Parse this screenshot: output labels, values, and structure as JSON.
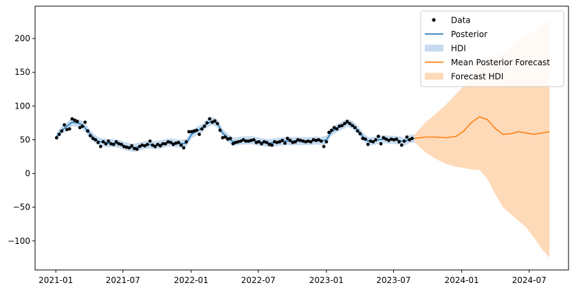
{
  "chart_data": {
    "type": "line",
    "title": "",
    "xlabel": "",
    "ylabel": "",
    "x_range": [
      "2020-11-06",
      "2024-10-15"
    ],
    "ylim": [
      -143,
      248
    ],
    "x_ticks": [
      "2021-01",
      "2021-07",
      "2022-01",
      "2022-07",
      "2023-01",
      "2023-07",
      "2024-01",
      "2024-07"
    ],
    "y_ticks": [
      -100,
      -50,
      0,
      50,
      100,
      150,
      200
    ],
    "grid": false,
    "legend_position": "upper right",
    "legend": [
      {
        "label": "Data",
        "kind": "marker",
        "color": "#000000"
      },
      {
        "label": "Posterior",
        "kind": "line",
        "color": "#1f77b4"
      },
      {
        "label": "HDI",
        "kind": "patch",
        "color": "#c6dbef"
      },
      {
        "label": "Mean Posterior Forecast",
        "kind": "line",
        "color": "#ff7f0e"
      },
      {
        "label": "Forecast HDI",
        "kind": "patch",
        "color": "#ffdab9"
      }
    ],
    "series": [
      {
        "name": "Data",
        "kind": "scatter",
        "color": "#000000",
        "points": [
          [
            "2021-01-03",
            53
          ],
          [
            "2021-01-10",
            58
          ],
          [
            "2021-01-17",
            63
          ],
          [
            "2021-01-24",
            72
          ],
          [
            "2021-01-31",
            65
          ],
          [
            "2021-02-07",
            66
          ],
          [
            "2021-02-14",
            81
          ],
          [
            "2021-02-21",
            79
          ],
          [
            "2021-02-28",
            77
          ],
          [
            "2021-03-07",
            68
          ],
          [
            "2021-03-14",
            70
          ],
          [
            "2021-03-21",
            76
          ],
          [
            "2021-03-28",
            63
          ],
          [
            "2021-04-04",
            56
          ],
          [
            "2021-04-11",
            52
          ],
          [
            "2021-04-18",
            50
          ],
          [
            "2021-04-25",
            46
          ],
          [
            "2021-05-02",
            40
          ],
          [
            "2021-05-09",
            47
          ],
          [
            "2021-05-16",
            44
          ],
          [
            "2021-05-23",
            48
          ],
          [
            "2021-05-30",
            44
          ],
          [
            "2021-06-06",
            43
          ],
          [
            "2021-06-13",
            47
          ],
          [
            "2021-06-20",
            44
          ],
          [
            "2021-06-27",
            43
          ],
          [
            "2021-07-04",
            40
          ],
          [
            "2021-07-11",
            39
          ],
          [
            "2021-07-18",
            38
          ],
          [
            "2021-07-25",
            41
          ],
          [
            "2021-08-01",
            37
          ],
          [
            "2021-08-08",
            36
          ],
          [
            "2021-08-15",
            40
          ],
          [
            "2021-08-22",
            42
          ],
          [
            "2021-08-29",
            41
          ],
          [
            "2021-09-05",
            43
          ],
          [
            "2021-09-12",
            48
          ],
          [
            "2021-09-19",
            42
          ],
          [
            "2021-09-26",
            40
          ],
          [
            "2021-10-03",
            43
          ],
          [
            "2021-10-10",
            41
          ],
          [
            "2021-10-17",
            44
          ],
          [
            "2021-10-24",
            44
          ],
          [
            "2021-10-31",
            47
          ],
          [
            "2021-11-07",
            46
          ],
          [
            "2021-11-14",
            43
          ],
          [
            "2021-11-21",
            45
          ],
          [
            "2021-11-28",
            46
          ],
          [
            "2021-12-05",
            42
          ],
          [
            "2021-12-12",
            38
          ],
          [
            "2021-12-19",
            47
          ],
          [
            "2021-12-26",
            62
          ],
          [
            "2022-01-02",
            62
          ],
          [
            "2022-01-09",
            63
          ],
          [
            "2022-01-16",
            64
          ],
          [
            "2022-01-23",
            58
          ],
          [
            "2022-01-30",
            66
          ],
          [
            "2022-02-06",
            70
          ],
          [
            "2022-02-13",
            75
          ],
          [
            "2022-02-20",
            81
          ],
          [
            "2022-02-27",
            76
          ],
          [
            "2022-03-06",
            78
          ],
          [
            "2022-03-13",
            74
          ],
          [
            "2022-03-20",
            64
          ],
          [
            "2022-03-27",
            53
          ],
          [
            "2022-04-03",
            54
          ],
          [
            "2022-04-10",
            51
          ],
          [
            "2022-04-17",
            52
          ],
          [
            "2022-04-24",
            44
          ],
          [
            "2022-05-01",
            46
          ],
          [
            "2022-05-08",
            47
          ],
          [
            "2022-05-15",
            48
          ],
          [
            "2022-05-22",
            50
          ],
          [
            "2022-05-29",
            48
          ],
          [
            "2022-06-05",
            48
          ],
          [
            "2022-06-12",
            49
          ],
          [
            "2022-06-19",
            50
          ],
          [
            "2022-06-26",
            46
          ],
          [
            "2022-07-03",
            47
          ],
          [
            "2022-07-10",
            44
          ],
          [
            "2022-07-17",
            47
          ],
          [
            "2022-07-24",
            46
          ],
          [
            "2022-07-31",
            43
          ],
          [
            "2022-08-07",
            42
          ],
          [
            "2022-08-14",
            47
          ],
          [
            "2022-08-21",
            46
          ],
          [
            "2022-08-28",
            47
          ],
          [
            "2022-09-04",
            49
          ],
          [
            "2022-09-11",
            45
          ],
          [
            "2022-09-18",
            52
          ],
          [
            "2022-09-25",
            49
          ],
          [
            "2022-10-02",
            46
          ],
          [
            "2022-10-09",
            47
          ],
          [
            "2022-10-16",
            50
          ],
          [
            "2022-10-23",
            49
          ],
          [
            "2022-10-30",
            48
          ],
          [
            "2022-11-06",
            47
          ],
          [
            "2022-11-13",
            48
          ],
          [
            "2022-11-20",
            47
          ],
          [
            "2022-11-27",
            50
          ],
          [
            "2022-12-04",
            49
          ],
          [
            "2022-12-11",
            50
          ],
          [
            "2022-12-18",
            48
          ],
          [
            "2022-12-25",
            40
          ],
          [
            "2023-01-01",
            47
          ],
          [
            "2023-01-08",
            61
          ],
          [
            "2023-01-15",
            64
          ],
          [
            "2023-01-22",
            68
          ],
          [
            "2023-01-29",
            66
          ],
          [
            "2023-02-05",
            70
          ],
          [
            "2023-02-12",
            71
          ],
          [
            "2023-02-19",
            74
          ],
          [
            "2023-02-26",
            77
          ],
          [
            "2023-03-05",
            74
          ],
          [
            "2023-03-12",
            71
          ],
          [
            "2023-03-19",
            68
          ],
          [
            "2023-03-26",
            63
          ],
          [
            "2023-04-02",
            59
          ],
          [
            "2023-04-09",
            52
          ],
          [
            "2023-04-16",
            51
          ],
          [
            "2023-04-23",
            43
          ],
          [
            "2023-04-30",
            48
          ],
          [
            "2023-05-07",
            47
          ],
          [
            "2023-05-14",
            50
          ],
          [
            "2023-05-21",
            55
          ],
          [
            "2023-05-28",
            44
          ],
          [
            "2023-06-04",
            53
          ],
          [
            "2023-06-11",
            51
          ],
          [
            "2023-06-18",
            49
          ],
          [
            "2023-06-25",
            51
          ],
          [
            "2023-07-02",
            50
          ],
          [
            "2023-07-09",
            51
          ],
          [
            "2023-07-16",
            47
          ],
          [
            "2023-07-23",
            42
          ],
          [
            "2023-07-30",
            48
          ],
          [
            "2023-08-06",
            54
          ],
          [
            "2023-08-13",
            50
          ],
          [
            "2023-08-20",
            52
          ]
        ]
      },
      {
        "name": "Posterior",
        "kind": "line",
        "color": "#1f77b4",
        "points": [
          [
            "2021-01-03",
            55
          ],
          [
            "2021-01-17",
            64
          ],
          [
            "2021-01-31",
            70
          ],
          [
            "2021-02-14",
            76
          ],
          [
            "2021-02-28",
            75
          ],
          [
            "2021-03-14",
            72
          ],
          [
            "2021-03-28",
            63
          ],
          [
            "2021-04-11",
            54
          ],
          [
            "2021-04-25",
            48
          ],
          [
            "2021-05-09",
            46
          ],
          [
            "2021-05-23",
            45
          ],
          [
            "2021-06-06",
            45
          ],
          [
            "2021-06-20",
            44
          ],
          [
            "2021-07-04",
            41
          ],
          [
            "2021-07-18",
            39
          ],
          [
            "2021-08-01",
            38
          ],
          [
            "2021-08-15",
            40
          ],
          [
            "2021-08-29",
            42
          ],
          [
            "2021-09-12",
            43
          ],
          [
            "2021-09-26",
            42
          ],
          [
            "2021-10-10",
            43
          ],
          [
            "2021-10-24",
            45
          ],
          [
            "2021-11-07",
            46
          ],
          [
            "2021-11-21",
            45
          ],
          [
            "2021-12-05",
            44
          ],
          [
            "2021-12-19",
            45
          ],
          [
            "2022-01-02",
            58
          ],
          [
            "2022-01-16",
            63
          ],
          [
            "2022-01-30",
            67
          ],
          [
            "2022-02-13",
            74
          ],
          [
            "2022-02-27",
            78
          ],
          [
            "2022-03-13",
            74
          ],
          [
            "2022-03-27",
            60
          ],
          [
            "2022-04-10",
            53
          ],
          [
            "2022-04-24",
            47
          ],
          [
            "2022-05-08",
            48
          ],
          [
            "2022-05-22",
            49
          ],
          [
            "2022-06-05",
            49
          ],
          [
            "2022-06-19",
            49
          ],
          [
            "2022-07-03",
            47
          ],
          [
            "2022-07-17",
            46
          ],
          [
            "2022-07-31",
            45
          ],
          [
            "2022-08-14",
            46
          ],
          [
            "2022-08-28",
            47
          ],
          [
            "2022-09-11",
            48
          ],
          [
            "2022-09-25",
            48
          ],
          [
            "2022-10-09",
            48
          ],
          [
            "2022-10-23",
            48
          ],
          [
            "2022-11-06",
            48
          ],
          [
            "2022-11-20",
            48
          ],
          [
            "2022-12-04",
            49
          ],
          [
            "2022-12-18",
            48
          ],
          [
            "2023-01-01",
            50
          ],
          [
            "2023-01-15",
            62
          ],
          [
            "2023-01-29",
            67
          ],
          [
            "2023-02-12",
            71
          ],
          [
            "2023-02-26",
            75
          ],
          [
            "2023-03-12",
            72
          ],
          [
            "2023-03-26",
            65
          ],
          [
            "2023-04-09",
            55
          ],
          [
            "2023-04-23",
            48
          ],
          [
            "2023-05-07",
            48
          ],
          [
            "2023-05-21",
            50
          ],
          [
            "2023-06-04",
            51
          ],
          [
            "2023-06-18",
            50
          ],
          [
            "2023-07-02",
            50
          ],
          [
            "2023-07-16",
            49
          ],
          [
            "2023-07-30",
            47
          ],
          [
            "2023-08-13",
            51
          ],
          [
            "2023-08-27",
            52
          ]
        ],
        "band": {
          "name": "HDI",
          "color": "#c6dbef",
          "half_width": 6
        }
      },
      {
        "name": "Mean Posterior Forecast",
        "kind": "line",
        "color": "#ff7f0e",
        "points": [
          [
            "2023-08-27",
            52
          ],
          [
            "2023-09-24",
            54
          ],
          [
            "2023-10-22",
            54
          ],
          [
            "2023-11-19",
            53
          ],
          [
            "2023-12-17",
            55
          ],
          [
            "2024-01-07",
            63
          ],
          [
            "2024-01-28",
            76
          ],
          [
            "2024-02-18",
            84
          ],
          [
            "2024-03-10",
            80
          ],
          [
            "2024-03-31",
            67
          ],
          [
            "2024-04-21",
            58
          ],
          [
            "2024-05-12",
            59
          ],
          [
            "2024-06-02",
            62
          ],
          [
            "2024-06-23",
            60
          ],
          [
            "2024-07-14",
            58
          ],
          [
            "2024-08-04",
            60
          ],
          [
            "2024-08-25",
            62
          ]
        ],
        "band": {
          "name": "Forecast HDI",
          "color": "#ffdab9",
          "upper": [
            [
              "2023-08-27",
              58
            ],
            [
              "2023-09-24",
              75
            ],
            [
              "2023-10-22",
              88
            ],
            [
              "2023-11-19",
              102
            ],
            [
              "2023-12-17",
              118
            ],
            [
              "2024-01-07",
              130
            ],
            [
              "2024-01-28",
              148
            ],
            [
              "2024-02-18",
              162
            ],
            [
              "2024-03-10",
              170
            ],
            [
              "2024-03-31",
              172
            ],
            [
              "2024-04-21",
              178
            ],
            [
              "2024-05-12",
              188
            ],
            [
              "2024-06-02",
              198
            ],
            [
              "2024-06-23",
              205
            ],
            [
              "2024-07-14",
              212
            ],
            [
              "2024-08-04",
              220
            ],
            [
              "2024-08-25",
              228
            ]
          ],
          "lower": [
            [
              "2023-08-27",
              46
            ],
            [
              "2023-09-24",
              32
            ],
            [
              "2023-10-22",
              22
            ],
            [
              "2023-11-19",
              14
            ],
            [
              "2023-12-17",
              10
            ],
            [
              "2024-01-07",
              8
            ],
            [
              "2024-01-28",
              6
            ],
            [
              "2024-02-18",
              5
            ],
            [
              "2024-03-10",
              -8
            ],
            [
              "2024-03-31",
              -30
            ],
            [
              "2024-04-21",
              -50
            ],
            [
              "2024-05-12",
              -60
            ],
            [
              "2024-06-02",
              -70
            ],
            [
              "2024-06-23",
              -80
            ],
            [
              "2024-07-14",
              -95
            ],
            [
              "2024-08-04",
              -112
            ],
            [
              "2024-08-25",
              -125
            ]
          ]
        }
      }
    ]
  }
}
